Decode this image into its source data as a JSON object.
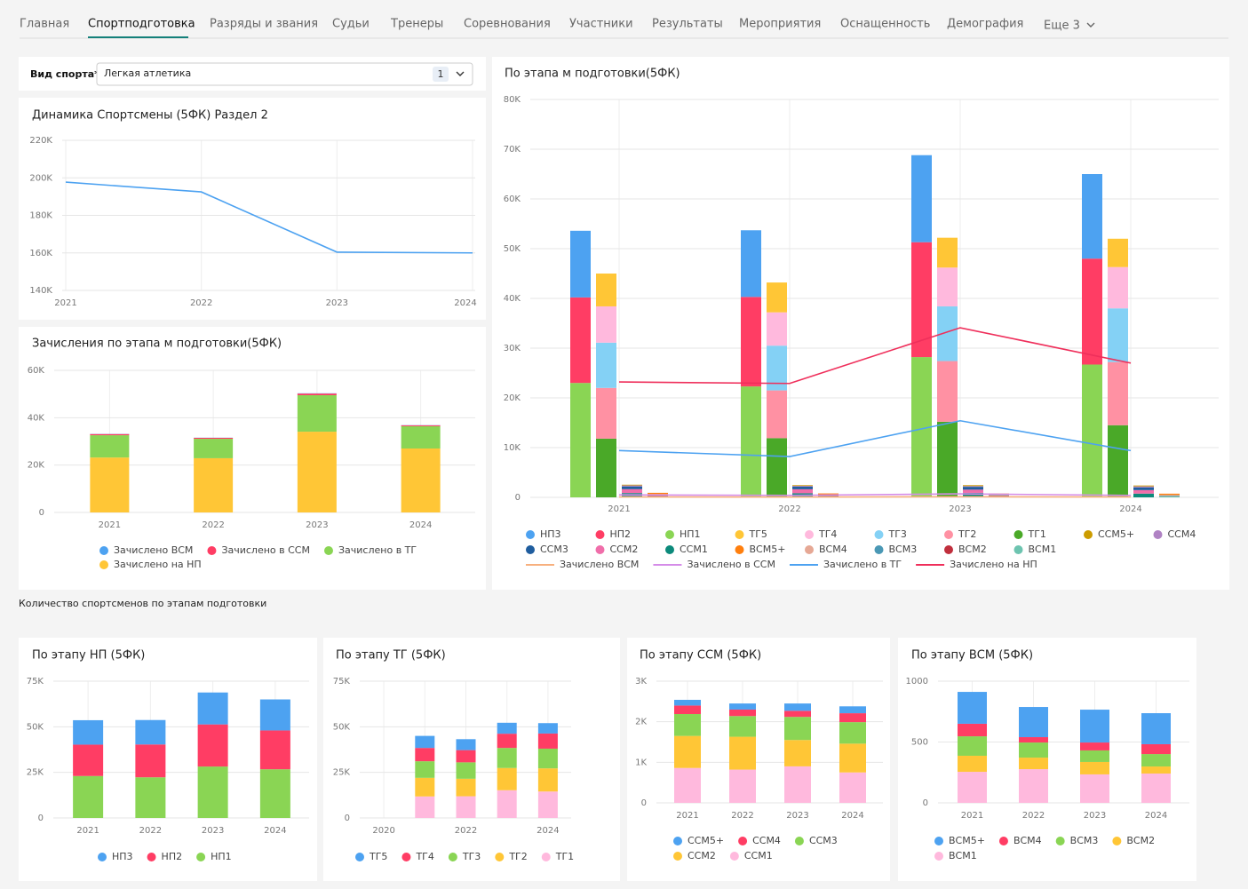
{
  "nav": [
    "Главная",
    "Спортподготовка",
    "Разряды и звания",
    "Судьи",
    "Тренеры",
    "Соревнования",
    "Участники",
    "Результаты",
    "Мероприятия",
    "Оснащенность",
    "Демография",
    "Еще 3"
  ],
  "filter": {
    "label": "Вид спорта*",
    "value": "Легкая атлетика",
    "count": 1
  },
  "section_title": "Количество спортсменов по этапам подготовки",
  "chart_data": [
    {
      "type": "line",
      "title": "Динамика Спортсмены (5ФК) Раздел 2",
      "categories": [
        "2021",
        "2022",
        "2023",
        "2024"
      ],
      "values": [
        197700,
        192500,
        160400,
        160000
      ],
      "color": "#4da2f1",
      "ylim": [
        140000,
        220000
      ],
      "yticks": [
        {
          "value": 140000,
          "label": "140K"
        },
        {
          "value": 160000,
          "label": "160K"
        },
        {
          "value": 180000,
          "label": "180K"
        },
        {
          "value": 200000,
          "label": "200K"
        },
        {
          "value": 220000,
          "label": "220K"
        }
      ],
      "grid": true
    },
    {
      "type": "bar",
      "title": "Зачисления по этапа м подготовки(5ФК)",
      "categories": [
        "2021",
        "2022",
        "2023",
        "2024"
      ],
      "series": [
        {
          "name": "Зачислено ВСМ",
          "color": "#4da2f1",
          "values": [
            80,
            60,
            120,
            70
          ]
        },
        {
          "name": "Зачислено в ССМ",
          "color": "#ff3d64",
          "values": [
            500,
            400,
            700,
            400
          ]
        },
        {
          "name": "Зачислено в ТГ",
          "color": "#8ad554",
          "values": [
            9400,
            8200,
            15400,
            9400
          ]
        },
        {
          "name": "Зачислено на НП",
          "color": "#ffc636",
          "values": [
            23200,
            22900,
            34100,
            27000
          ]
        }
      ],
      "ylim": [
        0,
        60000
      ],
      "yticks": [
        0,
        {
          "value": 20000,
          "label": "20K"
        },
        {
          "value": 40000,
          "label": "40K"
        },
        {
          "value": 60000,
          "label": "60K"
        }
      ],
      "grid": true
    },
    {
      "type": "bar",
      "title": "По этапа м подготовки(5ФК)",
      "categories": [
        "2021",
        "2022",
        "2023",
        "2024"
      ],
      "stacks": [
        [
          {
            "name": "НП3",
            "color": "#4da2f1",
            "values": [
              13400,
              13400,
              17500,
              17000
            ]
          },
          {
            "name": "НП2",
            "color": "#ff3d64",
            "values": [
              17200,
              18000,
              23100,
              21300
            ]
          },
          {
            "name": "НП1",
            "color": "#8ad554",
            "values": [
              23000,
              22300,
              28200,
              26700
            ]
          }
        ],
        [
          {
            "name": "ТГ5",
            "color": "#ffc636",
            "values": [
              6600,
              6000,
              6000,
              5700
            ]
          },
          {
            "name": "ТГ4",
            "color": "#ffb9dd",
            "values": [
              7300,
              6700,
              7800,
              8300
            ]
          },
          {
            "name": "ТГ3",
            "color": "#84d1f5",
            "values": [
              9100,
              9000,
              11000,
              10800
            ]
          },
          {
            "name": "ТГ2",
            "color": "#ff91a3",
            "values": [
              10200,
              9600,
              12200,
              12700
            ]
          },
          {
            "name": "ТГ1",
            "color": "#4aa928",
            "values": [
              11800,
              11900,
              15200,
              14500
            ]
          }
        ],
        [
          {
            "name": "ССМ5+",
            "color": "#cc9c00",
            "values": [
              140,
              150,
              180,
              170
            ]
          },
          {
            "name": "ССМ4",
            "color": "#b083c4",
            "values": [
              210,
              160,
              150,
              220
            ]
          },
          {
            "name": "ССМ3",
            "color": "#1f5d9e",
            "values": [
              540,
              510,
              570,
              530
            ]
          },
          {
            "name": "ССМ2",
            "color": "#f06eaa",
            "values": [
              790,
              810,
              650,
              710
            ]
          },
          {
            "name": "ССМ1",
            "color": "#0c8a7b",
            "values": [
              860,
              820,
              900,
              750
            ]
          }
        ],
        [
          {
            "name": "ВСМ5+",
            "color": "#ff7f0e",
            "values": [
              262,
              248,
              270,
              255
            ]
          },
          {
            "name": "ВСМ4",
            "color": "#e6a895",
            "values": [
              103,
              44,
              65,
              81
            ]
          },
          {
            "name": "ВСМ3",
            "color": "#4a98b5",
            "values": [
              160,
              124,
              95,
              102
            ]
          },
          {
            "name": "ВСМ2",
            "color": "#c02f3d",
            "values": [
              132,
              95,
              102,
              58
            ]
          },
          {
            "name": "ВСМ1",
            "color": "#6dc4b0",
            "values": [
              255,
              277,
              234,
              241
            ]
          }
        ]
      ],
      "lines": [
        {
          "name": "Зачислено ВСМ",
          "color": "#f7b07e",
          "values": [
            80,
            60,
            120,
            70
          ]
        },
        {
          "name": "Зачислено в ССМ",
          "color": "#d58ce8",
          "values": [
            500,
            400,
            700,
            400
          ]
        },
        {
          "name": "Зачислено в ТГ",
          "color": "#4da2f1",
          "values": [
            9400,
            8200,
            15400,
            9400
          ]
        },
        {
          "name": "Зачислено на НП",
          "color": "#ef2f5b",
          "values": [
            23200,
            22900,
            34100,
            27000
          ]
        }
      ],
      "ylim": [
        0,
        80000
      ],
      "yticks": [
        0,
        {
          "value": 10000,
          "label": "10K"
        },
        {
          "value": 20000,
          "label": "20K"
        },
        {
          "value": 30000,
          "label": "30K"
        },
        {
          "value": 40000,
          "label": "40K"
        },
        {
          "value": 50000,
          "label": "50K"
        },
        {
          "value": 60000,
          "label": "60K"
        },
        {
          "value": 70000,
          "label": "70K"
        },
        {
          "value": 80000,
          "label": "80K"
        }
      ],
      "grid": true
    },
    {
      "type": "bar",
      "title": "По этапу НП (5ФК)",
      "categories": [
        "2021",
        "2022",
        "2023",
        "2024"
      ],
      "series": [
        {
          "name": "НП3",
          "color": "#4da2f1",
          "values": [
            13400,
            13400,
            17500,
            17000
          ]
        },
        {
          "name": "НП2",
          "color": "#ff3d64",
          "values": [
            17200,
            18000,
            23100,
            21300
          ]
        },
        {
          "name": "НП1",
          "color": "#8ad554",
          "values": [
            23000,
            22300,
            28200,
            26700
          ]
        }
      ],
      "ylim": [
        0,
        75000
      ],
      "yticks": [
        0,
        {
          "value": 25000,
          "label": "25K"
        },
        {
          "value": 50000,
          "label": "50K"
        },
        {
          "value": 75000,
          "label": "75K"
        }
      ],
      "grid": true
    },
    {
      "type": "bar",
      "title": "По этапу ТГ (5ФК)",
      "categories": [
        "2020",
        null,
        "2022",
        null,
        "2024"
      ],
      "series": [
        {
          "name": "ТГ5",
          "color": "#4da2f1",
          "values": [
            null,
            6600,
            6000,
            6000,
            5700
          ]
        },
        {
          "name": "ТГ4",
          "color": "#ff3d64",
          "values": [
            null,
            7300,
            6700,
            7800,
            8300
          ]
        },
        {
          "name": "ТГ3",
          "color": "#8ad554",
          "values": [
            null,
            9100,
            9000,
            11000,
            10800
          ]
        },
        {
          "name": "ТГ2",
          "color": "#ffc636",
          "values": [
            null,
            10200,
            9600,
            12200,
            12700
          ]
        },
        {
          "name": "ТГ1",
          "color": "#ffb9dd",
          "values": [
            null,
            11800,
            11900,
            15200,
            14500
          ]
        }
      ],
      "ylim": [
        0,
        75000
      ],
      "yticks": [
        0,
        {
          "value": 25000,
          "label": "25K"
        },
        {
          "value": 50000,
          "label": "50K"
        },
        {
          "value": 75000,
          "label": "75K"
        }
      ],
      "grid": true
    },
    {
      "type": "bar",
      "title": "По этапу ССМ (5ФК)",
      "categories": [
        "2021",
        "2022",
        "2023",
        "2024"
      ],
      "series": [
        {
          "name": "ССМ5+",
          "color": "#4da2f1",
          "values": [
            140,
            150,
            180,
            170
          ]
        },
        {
          "name": "ССМ4",
          "color": "#ff3d64",
          "values": [
            210,
            160,
            150,
            220
          ]
        },
        {
          "name": "ССМ3",
          "color": "#8ad554",
          "values": [
            540,
            510,
            570,
            530
          ]
        },
        {
          "name": "ССМ2",
          "color": "#ffc636",
          "values": [
            790,
            810,
            650,
            710
          ]
        },
        {
          "name": "ССМ1",
          "color": "#ffb9dd",
          "values": [
            860,
            820,
            900,
            750
          ]
        }
      ],
      "ylim": [
        0,
        3000
      ],
      "yticks": [
        0,
        {
          "value": 1000,
          "label": "1K"
        },
        {
          "value": 2000,
          "label": "2K"
        },
        {
          "value": 3000,
          "label": "3K"
        }
      ],
      "grid": true
    },
    {
      "type": "bar",
      "title": "По этапу ВСМ (5ФК)",
      "categories": [
        "2021",
        "2022",
        "2023",
        "2024"
      ],
      "series": [
        {
          "name": "ВСМ5+",
          "color": "#4da2f1",
          "values": [
            262,
            248,
            270,
            255
          ]
        },
        {
          "name": "ВСМ4",
          "color": "#ff3d64",
          "values": [
            103,
            44,
            65,
            81
          ]
        },
        {
          "name": "ВСМ3",
          "color": "#8ad554",
          "values": [
            160,
            124,
            95,
            102
          ]
        },
        {
          "name": "ВСМ2",
          "color": "#ffc636",
          "values": [
            132,
            95,
            102,
            58
          ]
        },
        {
          "name": "ВСМ1",
          "color": "#ffb9dd",
          "values": [
            255,
            277,
            234,
            241
          ]
        }
      ],
      "ylim": [
        0,
        1000
      ],
      "yticks": [
        0,
        500,
        1000
      ],
      "grid": true
    }
  ]
}
